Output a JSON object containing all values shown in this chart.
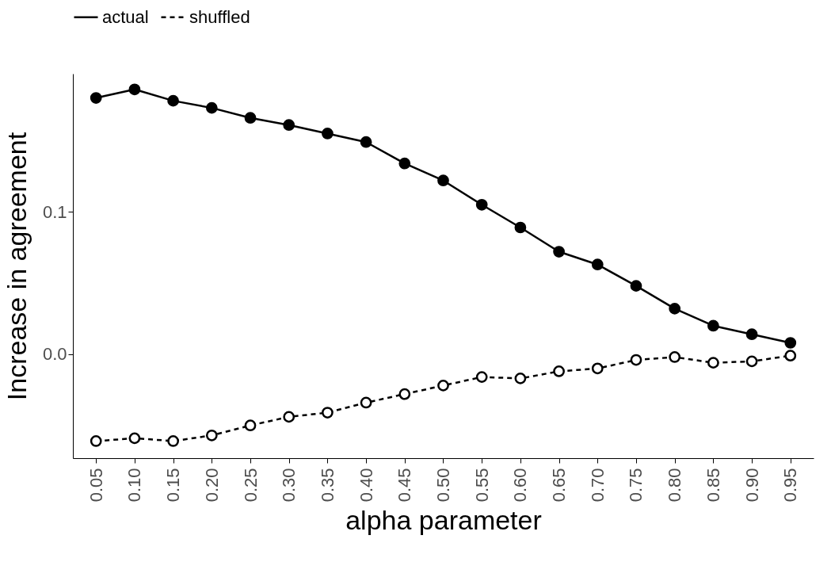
{
  "chart_data": {
    "type": "line",
    "xlabel": "alpha parameter",
    "ylabel": "Increase in agreement",
    "categories": [
      "0.05",
      "0.10",
      "0.15",
      "0.20",
      "0.25",
      "0.30",
      "0.35",
      "0.40",
      "0.45",
      "0.50",
      "0.55",
      "0.60",
      "0.65",
      "0.70",
      "0.75",
      "0.80",
      "0.85",
      "0.90",
      "0.95"
    ],
    "series": [
      {
        "name": "actual",
        "color": "#000000",
        "line_style": "solid",
        "values": [
          0.18,
          0.186,
          0.178,
          0.173,
          0.166,
          0.161,
          0.155,
          0.149,
          0.134,
          0.122,
          0.105,
          0.089,
          0.072,
          0.063,
          0.048,
          0.032,
          0.02,
          0.014,
          0.008
        ]
      },
      {
        "name": "shuffled",
        "color": "#000000",
        "line_style": "dashed",
        "values": [
          -0.061,
          -0.059,
          -0.061,
          -0.057,
          -0.05,
          -0.044,
          -0.041,
          -0.034,
          -0.028,
          -0.022,
          -0.016,
          -0.017,
          -0.012,
          -0.01,
          -0.004,
          -0.002,
          -0.006,
          -0.005,
          -0.001
        ]
      }
    ],
    "ylim": [
      -0.073,
      0.197
    ],
    "yticks": [
      {
        "value": 0,
        "label": "0.0"
      },
      0.1
    ],
    "grid": false,
    "legend": "top",
    "marker": "circle"
  }
}
